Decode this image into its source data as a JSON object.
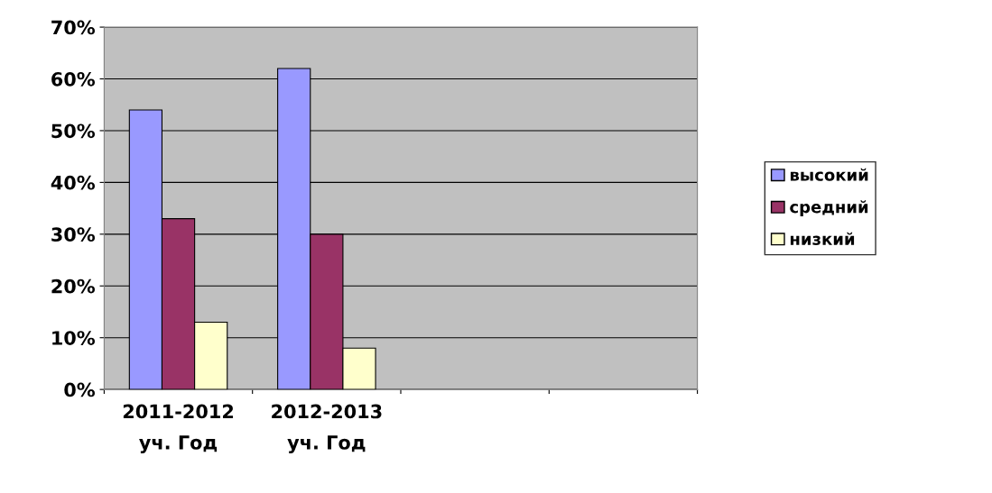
{
  "chart_data": {
    "type": "bar",
    "categories": [
      "2011-2012\nуч. Год",
      "2012-2013\nуч. Год",
      null,
      null
    ],
    "series": [
      {
        "name": "высокий",
        "color": "#9999ff",
        "values": [
          54,
          62,
          null,
          null
        ]
      },
      {
        "name": "средний",
        "color": "#993366",
        "values": [
          33,
          30,
          null,
          null
        ]
      },
      {
        "name": "низкий",
        "color": "#ffffcc",
        "values": [
          13,
          8,
          null,
          null
        ]
      }
    ],
    "ylim": [
      0,
      70
    ],
    "yticks": [
      {
        "value": 0,
        "label": "0%"
      },
      {
        "value": 10,
        "label": "10%"
      },
      {
        "value": 20,
        "label": "20%"
      },
      {
        "value": 30,
        "label": "30%"
      },
      {
        "value": 40,
        "label": "40%"
      },
      {
        "value": 50,
        "label": "50%"
      },
      {
        "value": 60,
        "label": "60%"
      },
      {
        "value": 70,
        "label": "70%"
      }
    ],
    "grid": "y",
    "legend": "right"
  }
}
